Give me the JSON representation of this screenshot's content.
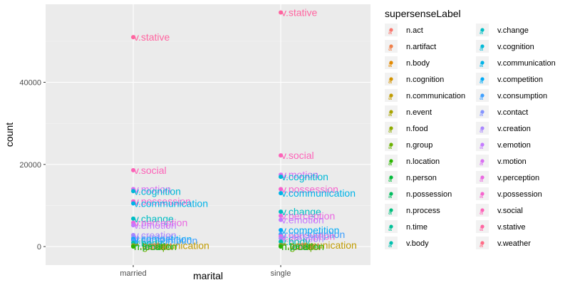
{
  "chart_data": {
    "type": "scatter",
    "xlabel": "marital",
    "ylabel": "count",
    "categories": [
      "married",
      "single"
    ],
    "ylim": [
      -4500,
      59000
    ],
    "yticks": [
      0,
      20000,
      40000
    ],
    "grid": true,
    "legend": {
      "title": "supersenseLabel",
      "position": "right",
      "entries": [
        {
          "label": "n.act",
          "color": "#F8766D"
        },
        {
          "label": "n.artifact",
          "color": "#EF7F49"
        },
        {
          "label": "n.body",
          "color": "#E38900"
        },
        {
          "label": "n.cognition",
          "color": "#D39200"
        },
        {
          "label": "n.communication",
          "color": "#C09B00"
        },
        {
          "label": "n.event",
          "color": "#A9A400"
        },
        {
          "label": "n.food",
          "color": "#8EAB00"
        },
        {
          "label": "n.group",
          "color": "#6BB100"
        },
        {
          "label": "n.location",
          "color": "#2CB600"
        },
        {
          "label": "n.person",
          "color": "#00BA38"
        },
        {
          "label": "n.possession",
          "color": "#00BD5F"
        },
        {
          "label": "n.process",
          "color": "#00BF7D"
        },
        {
          "label": "n.time",
          "color": "#00C097"
        },
        {
          "label": "v.body",
          "color": "#00C0AF"
        },
        {
          "label": "v.change",
          "color": "#00BDC4"
        },
        {
          "label": "v.cognition",
          "color": "#00B9D7"
        },
        {
          "label": "v.communication",
          "color": "#00B3E8"
        },
        {
          "label": "v.competition",
          "color": "#00AAF6"
        },
        {
          "label": "v.consumption",
          "color": "#3D9FFF"
        },
        {
          "label": "v.contact",
          "color": "#8393FF"
        },
        {
          "label": "v.creation",
          "color": "#A986FF"
        },
        {
          "label": "v.emotion",
          "color": "#C47AFF"
        },
        {
          "label": "v.motion",
          "color": "#D970F2"
        },
        {
          "label": "v.perception",
          "color": "#EA68E1"
        },
        {
          "label": "v.possession",
          "color": "#F664CE"
        },
        {
          "label": "v.social",
          "color": "#FD63B8"
        },
        {
          "label": "v.stative",
          "color": "#FF65A0"
        },
        {
          "label": "v.weather",
          "color": "#FF6C86"
        }
      ]
    },
    "series": [
      {
        "name": "married",
        "points": [
          {
            "label": "v.stative",
            "y": 51000,
            "color": "#FF65A0"
          },
          {
            "label": "v.social",
            "y": 18600,
            "color": "#FD63B8"
          },
          {
            "label": "v.motion",
            "y": 14000,
            "color": "#D970F2"
          },
          {
            "label": "v.cognition",
            "y": 13500,
            "color": "#00B9D7"
          },
          {
            "label": "v.possession",
            "y": 11000,
            "color": "#F664CE"
          },
          {
            "label": "v.communication",
            "y": 10500,
            "color": "#00B3E8"
          },
          {
            "label": "v.change",
            "y": 6800,
            "color": "#00BDC4"
          },
          {
            "label": "v.perception",
            "y": 5800,
            "color": "#EA68E1"
          },
          {
            "label": "v.emotion",
            "y": 5200,
            "color": "#C47AFF"
          },
          {
            "label": "v.creation",
            "y": 2800,
            "color": "#A986FF"
          },
          {
            "label": "v.contact",
            "y": 2200,
            "color": "#8393FF"
          },
          {
            "label": "v.competition",
            "y": 1800,
            "color": "#00AAF6"
          },
          {
            "label": "v.consumption",
            "y": 1500,
            "color": "#3D9FFF"
          },
          {
            "label": "v.body",
            "y": 900,
            "color": "#00C0AF"
          },
          {
            "label": "n.communication",
            "y": 300,
            "color": "#C09B00"
          },
          {
            "label": "n.person",
            "y": 150,
            "color": "#00BA38"
          },
          {
            "label": "n.group",
            "y": 100,
            "color": "#6BB100"
          },
          {
            "label": "n.act",
            "y": 80,
            "color": "#F8766D"
          },
          {
            "label": "n.artifact",
            "y": 60,
            "color": "#EF7F49"
          },
          {
            "label": "n.time",
            "y": 40,
            "color": "#00C097"
          },
          {
            "label": "n.location",
            "y": 20,
            "color": "#2CB600"
          }
        ]
      },
      {
        "name": "single",
        "points": [
          {
            "label": "v.stative",
            "y": 57000,
            "color": "#FF65A0"
          },
          {
            "label": "v.social",
            "y": 22200,
            "color": "#FD63B8"
          },
          {
            "label": "v.motion",
            "y": 17500,
            "color": "#D970F2"
          },
          {
            "label": "v.cognition",
            "y": 17000,
            "color": "#00B9D7"
          },
          {
            "label": "v.possession",
            "y": 14000,
            "color": "#F664CE"
          },
          {
            "label": "v.communication",
            "y": 13000,
            "color": "#00B3E8"
          },
          {
            "label": "v.change",
            "y": 8500,
            "color": "#00BDC4"
          },
          {
            "label": "v.perception",
            "y": 7500,
            "color": "#EA68E1"
          },
          {
            "label": "v.emotion",
            "y": 6500,
            "color": "#C47AFF"
          },
          {
            "label": "v.competition",
            "y": 4000,
            "color": "#00AAF6"
          },
          {
            "label": "v.consumption",
            "y": 3000,
            "color": "#3D9FFF"
          },
          {
            "label": "v.perception",
            "y": 2500,
            "color": "#EA68E1"
          },
          {
            "label": "v.creation",
            "y": 2000,
            "color": "#A986FF"
          },
          {
            "label": "v.body",
            "y": 1200,
            "color": "#00C0AF"
          },
          {
            "label": "n.communication",
            "y": 350,
            "color": "#C09B00"
          },
          {
            "label": "n.person",
            "y": 200,
            "color": "#00BA38"
          },
          {
            "label": "n.group",
            "y": 120,
            "color": "#6BB100"
          },
          {
            "label": "n.act",
            "y": 90,
            "color": "#F8766D"
          },
          {
            "label": "n.artifact",
            "y": 70,
            "color": "#EF7F49"
          },
          {
            "label": "n.time",
            "y": 40,
            "color": "#00C097"
          },
          {
            "label": "n.location",
            "y": 20,
            "color": "#2CB600"
          }
        ]
      }
    ]
  }
}
